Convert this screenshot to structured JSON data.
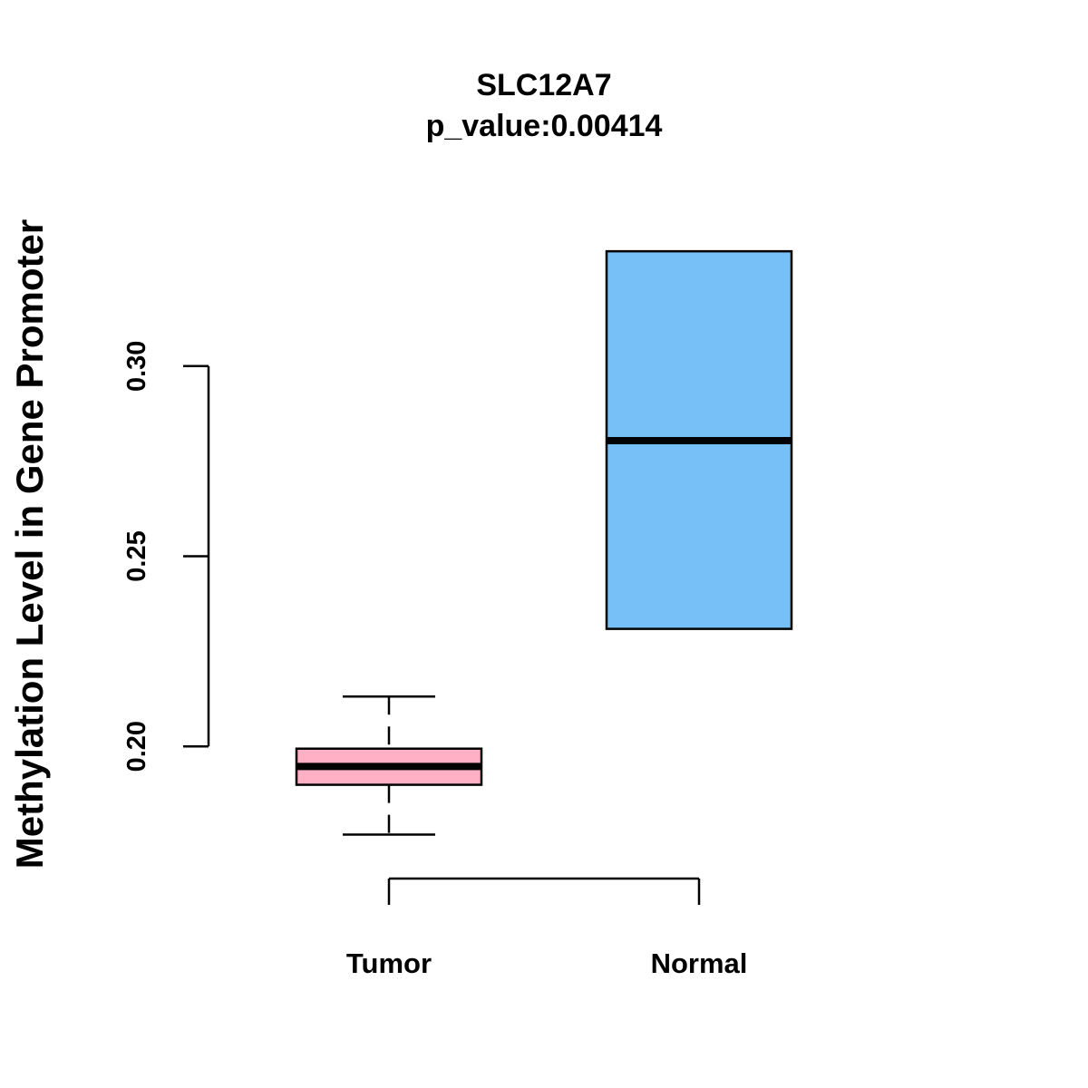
{
  "chart_data": {
    "type": "boxplot",
    "title": "SLC12A7",
    "subtitle": "p_value:0.00414",
    "ylabel": "Methylation Level in Gene Promoter",
    "xlabel": "",
    "ylim": [
      0.165,
      0.335
    ],
    "yticks": [
      0.2,
      0.25,
      0.3
    ],
    "ytick_labels": [
      "0.20",
      "0.25",
      "0.30"
    ],
    "categories": [
      "Tumor",
      "Normal"
    ],
    "series": [
      {
        "name": "Tumor",
        "color": "#ffb0c4",
        "whisker_low": 0.1768,
        "q1": 0.1899,
        "median": 0.1947,
        "q3": 0.1994,
        "whisker_high": 0.2131
      },
      {
        "name": "Normal",
        "color": "#76bff7",
        "whisker_low": 0.2309,
        "q1": 0.2309,
        "median": 0.2804,
        "q3": 0.3302,
        "whisker_high": 0.3302
      }
    ]
  }
}
